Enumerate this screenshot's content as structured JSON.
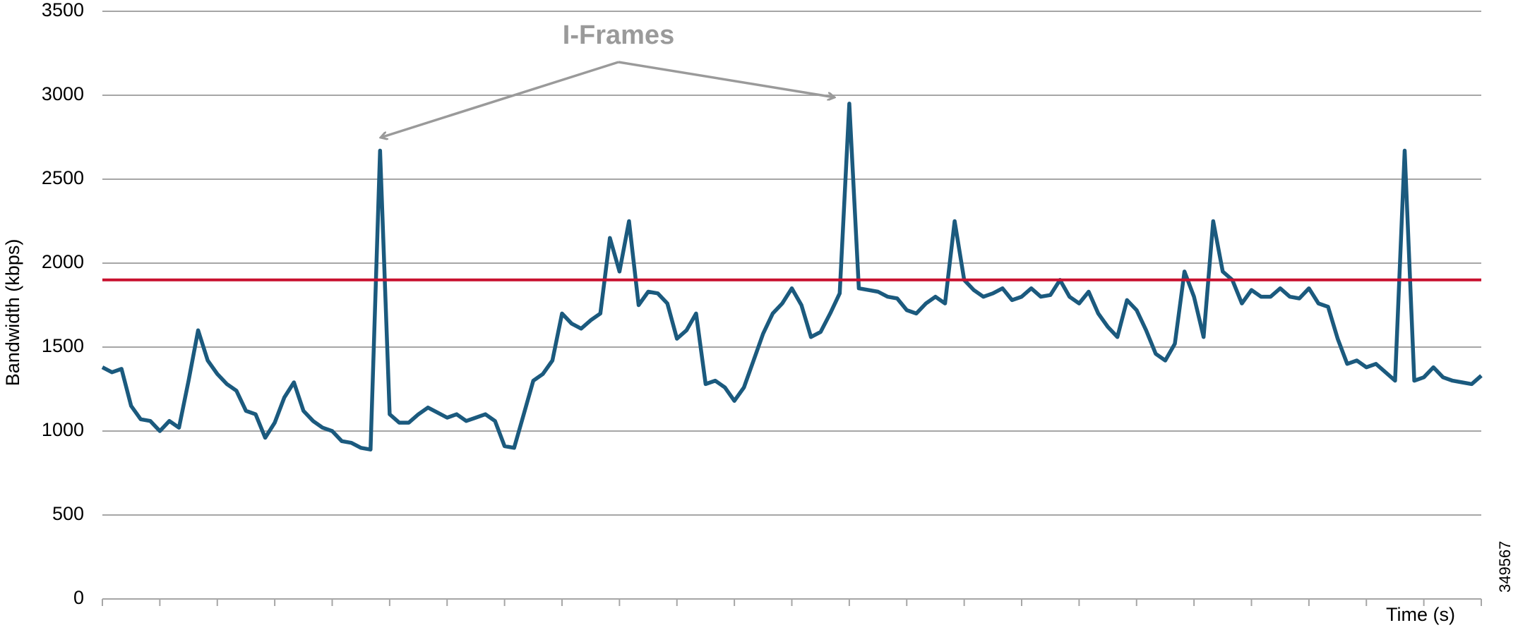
{
  "chart_data": {
    "type": "line",
    "y_label": "Bandwidth (kbps)",
    "x_label": "Time (s)",
    "annotation": "I-Frames",
    "figure_id": "349567",
    "color": "#1b5a7e",
    "ylim": [
      0,
      3500
    ],
    "yticks": [
      0,
      500,
      1000,
      1500,
      2000,
      2500,
      3000,
      3500
    ],
    "grid": true,
    "reference_line": {
      "value": 1900,
      "color": "#c8102e"
    },
    "categories": [
      null,
      null,
      null,
      null,
      null,
      null,
      null,
      null,
      null,
      null,
      null,
      null,
      null,
      null,
      null,
      null,
      null,
      null,
      null,
      null,
      null,
      null,
      null,
      null,
      null,
      null,
      null,
      null,
      null,
      null,
      null,
      null,
      null,
      null,
      null,
      null,
      null,
      null,
      null,
      null,
      null,
      null,
      null,
      null,
      null,
      null,
      null,
      null,
      null,
      null,
      null,
      null,
      null,
      null,
      null,
      null,
      null,
      null,
      null,
      null,
      null,
      null,
      null,
      null,
      null,
      null,
      null,
      null,
      null,
      null,
      null,
      null,
      null,
      null,
      null,
      null,
      null,
      null,
      null,
      null,
      null,
      null,
      null,
      null,
      null,
      null,
      null,
      null,
      null,
      null,
      null,
      null,
      null,
      null,
      null,
      null,
      null,
      null,
      null,
      null,
      null,
      null,
      null,
      null,
      null,
      null,
      null,
      null,
      null,
      null,
      null,
      null,
      null,
      null,
      null,
      null,
      null,
      null,
      null,
      null,
      null,
      null,
      null,
      null,
      null,
      null,
      null,
      null,
      null,
      null,
      null,
      null,
      null,
      null,
      null,
      null,
      null,
      null,
      null,
      null,
      null,
      null,
      null,
      null,
      null
    ],
    "values": [
      1380,
      1350,
      1370,
      1150,
      1070,
      1060,
      1000,
      1060,
      1020,
      1300,
      1600,
      1420,
      1340,
      1280,
      1240,
      1120,
      1100,
      960,
      1050,
      1200,
      1290,
      1120,
      1060,
      1020,
      1000,
      940,
      930,
      900,
      890,
      2670,
      1100,
      1050,
      1050,
      1100,
      1140,
      1110,
      1080,
      1100,
      1060,
      1080,
      1100,
      1060,
      910,
      900,
      1100,
      1300,
      1340,
      1420,
      1700,
      1640,
      1610,
      1660,
      1700,
      2150,
      1950,
      2250,
      1750,
      1830,
      1820,
      1760,
      1550,
      1600,
      1700,
      1280,
      1300,
      1260,
      1180,
      1260,
      1420,
      1580,
      1700,
      1760,
      1850,
      1750,
      1560,
      1590,
      1700,
      1820,
      2950,
      1850,
      1840,
      1830,
      1800,
      1790,
      1720,
      1700,
      1760,
      1800,
      1760,
      2250,
      1900,
      1840,
      1800,
      1820,
      1850,
      1780,
      1800,
      1850,
      1800,
      1810,
      1900,
      1800,
      1760,
      1830,
      1700,
      1620,
      1560,
      1780,
      1720,
      1600,
      1460,
      1420,
      1520,
      1950,
      1800,
      1560,
      2250,
      1950,
      1900,
      1760,
      1840,
      1800,
      1800,
      1850,
      1800,
      1790,
      1850,
      1760,
      1740,
      1550,
      1400,
      1420,
      1380,
      1400,
      1350,
      1300,
      2670,
      1300,
      1320,
      1380,
      1320,
      1300,
      1290,
      1280,
      1330
    ]
  }
}
